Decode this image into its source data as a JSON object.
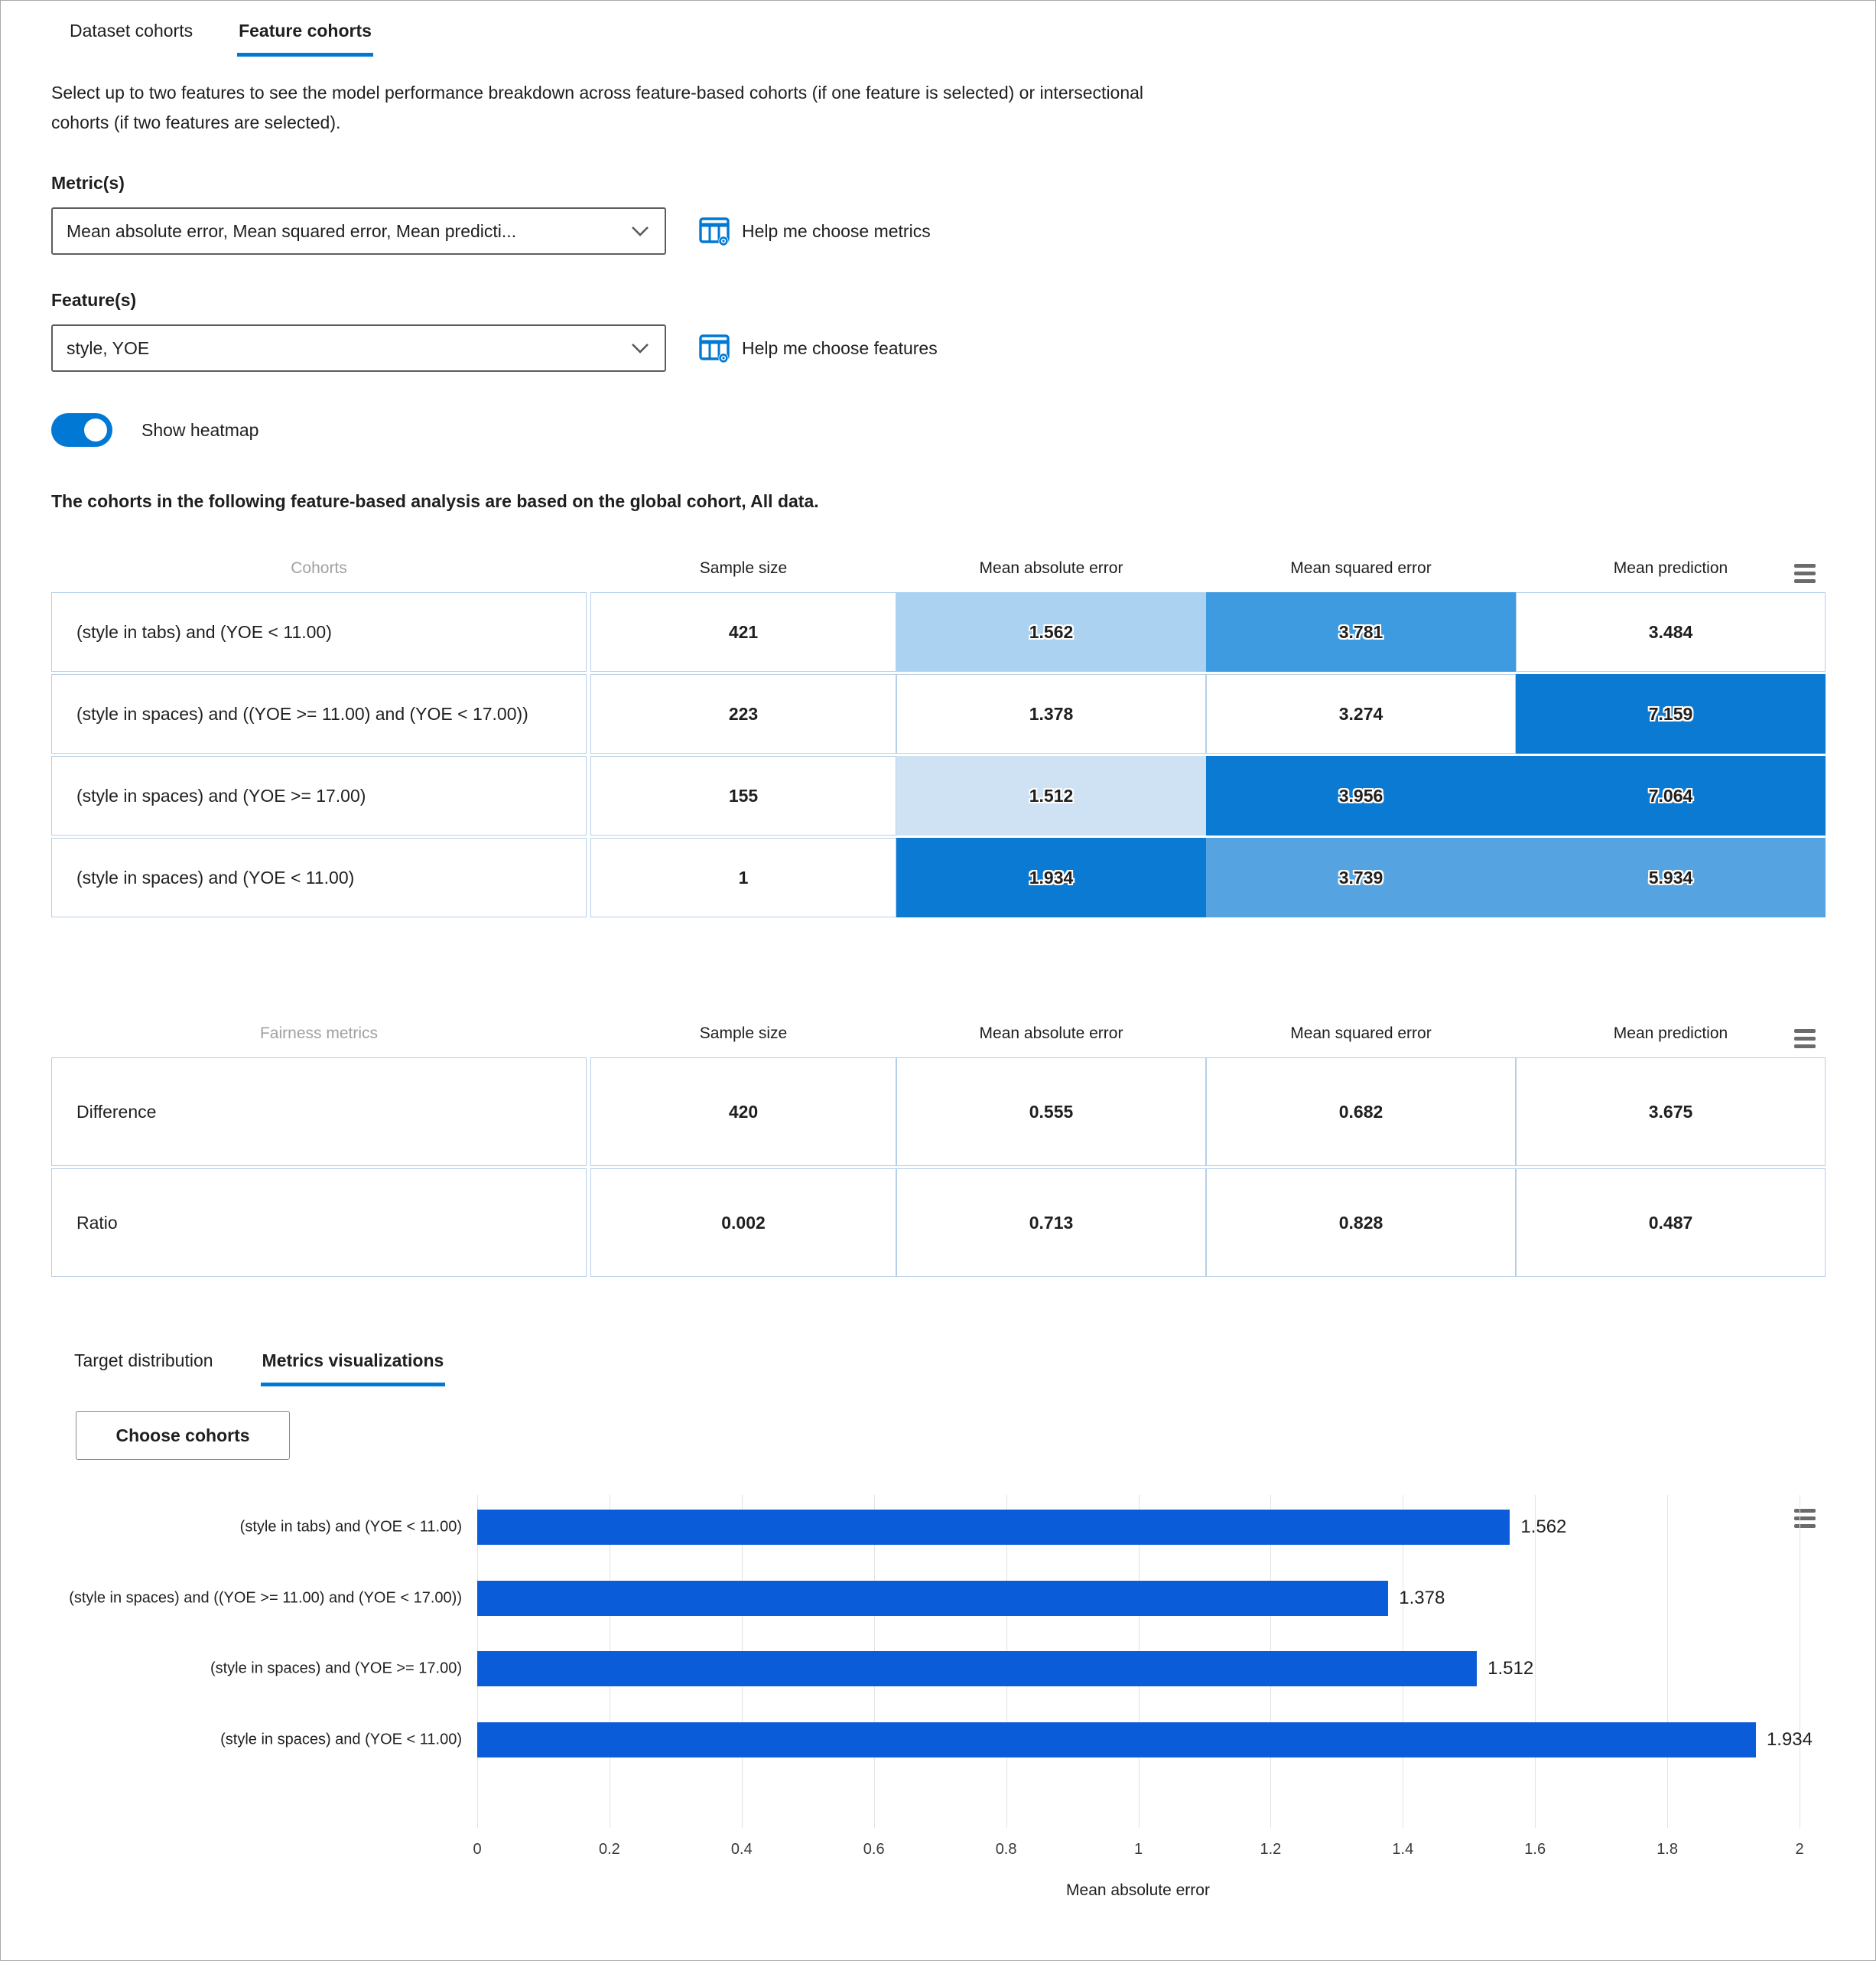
{
  "tabs": {
    "dataset": "Dataset cohorts",
    "feature": "Feature cohorts"
  },
  "description": "Select up to two features to see the model performance breakdown across feature-based cohorts (if one feature is selected) or intersectional cohorts (if two features are selected).",
  "metric_field": {
    "label": "Metric(s)",
    "value": "Mean absolute error, Mean squared error, Mean predicti...",
    "help": "Help me choose metrics"
  },
  "feature_field": {
    "label": "Feature(s)",
    "value": "style, YOE",
    "help": "Help me choose features"
  },
  "heatmap_toggle": {
    "label": "Show heatmap",
    "state": "on"
  },
  "note": "The cohorts in the following feature-based analysis are based on the global cohort, All data.",
  "colors": {
    "accent": "#0078d4",
    "bar": "#0b5cd8",
    "heat_light": "#cfe2f4",
    "heat_mid_light": "#abd2f1",
    "heat_mid": "#55a3e0",
    "heat_strong": "#3f9be0",
    "heat_dark": "#0a7ad2"
  },
  "cohort_table": {
    "headers": [
      "Cohorts",
      "Sample size",
      "Mean absolute error",
      "Mean squared error",
      "Mean prediction"
    ],
    "rows": [
      {
        "label": "(style in tabs) and (YOE < 11.00)",
        "sample_size": "421",
        "cells": [
          {
            "v": "1.562",
            "bg": "#abd2f1"
          },
          {
            "v": "3.781",
            "bg": "#3f9be0"
          },
          {
            "v": "3.484",
            "bg": "#ffffff"
          }
        ]
      },
      {
        "label": "(style in spaces) and ((YOE >= 11.00) and (YOE < 17.00))",
        "sample_size": "223",
        "cells": [
          {
            "v": "1.378",
            "bg": "#ffffff"
          },
          {
            "v": "3.274",
            "bg": "#ffffff"
          },
          {
            "v": "7.159",
            "bg": "#0a7ad2"
          }
        ]
      },
      {
        "label": "(style in spaces) and (YOE >= 17.00)",
        "sample_size": "155",
        "cells": [
          {
            "v": "1.512",
            "bg": "#cfe2f4"
          },
          {
            "v": "3.956",
            "bg": "#0a7ad2"
          },
          {
            "v": "7.064",
            "bg": "#0a7ad2"
          }
        ]
      },
      {
        "label": "(style in spaces) and (YOE < 11.00)",
        "sample_size": "1",
        "cells": [
          {
            "v": "1.934",
            "bg": "#0a7ad2"
          },
          {
            "v": "3.739",
            "bg": "#55a3e0"
          },
          {
            "v": "5.934",
            "bg": "#55a3e0"
          }
        ]
      }
    ]
  },
  "fairness_table": {
    "headers": [
      "Fairness metrics",
      "Sample size",
      "Mean absolute error",
      "Mean squared error",
      "Mean prediction"
    ],
    "rows": [
      {
        "label": "Difference",
        "values": [
          "420",
          "0.555",
          "0.682",
          "3.675"
        ]
      },
      {
        "label": "Ratio",
        "values": [
          "0.002",
          "0.713",
          "0.828",
          "0.487"
        ]
      }
    ]
  },
  "viz_tabs": {
    "target": "Target distribution",
    "metrics": "Metrics visualizations"
  },
  "choose_cohorts_label": "Choose cohorts",
  "chart_data": {
    "type": "bar",
    "orientation": "horizontal",
    "categories": [
      "(style in tabs) and (YOE < 11.00)",
      "(style in spaces) and ((YOE >= 11.00) and (YOE < 17.00))",
      "(style in spaces) and (YOE >= 17.00)",
      "(style in spaces) and (YOE < 11.00)"
    ],
    "values": [
      1.562,
      1.378,
      1.512,
      1.934
    ],
    "value_labels": [
      "1.562",
      "1.378",
      "1.512",
      "1.934"
    ],
    "xlabel": "Mean absolute error",
    "xticks": [
      "0",
      "0.2",
      "0.4",
      "0.6",
      "0.8",
      "1",
      "1.2",
      "1.4",
      "1.6",
      "1.8",
      "2"
    ],
    "xlim": [
      0,
      2
    ],
    "grid": "vertical",
    "legend": "none",
    "bar_color": "#0b5cd8"
  }
}
